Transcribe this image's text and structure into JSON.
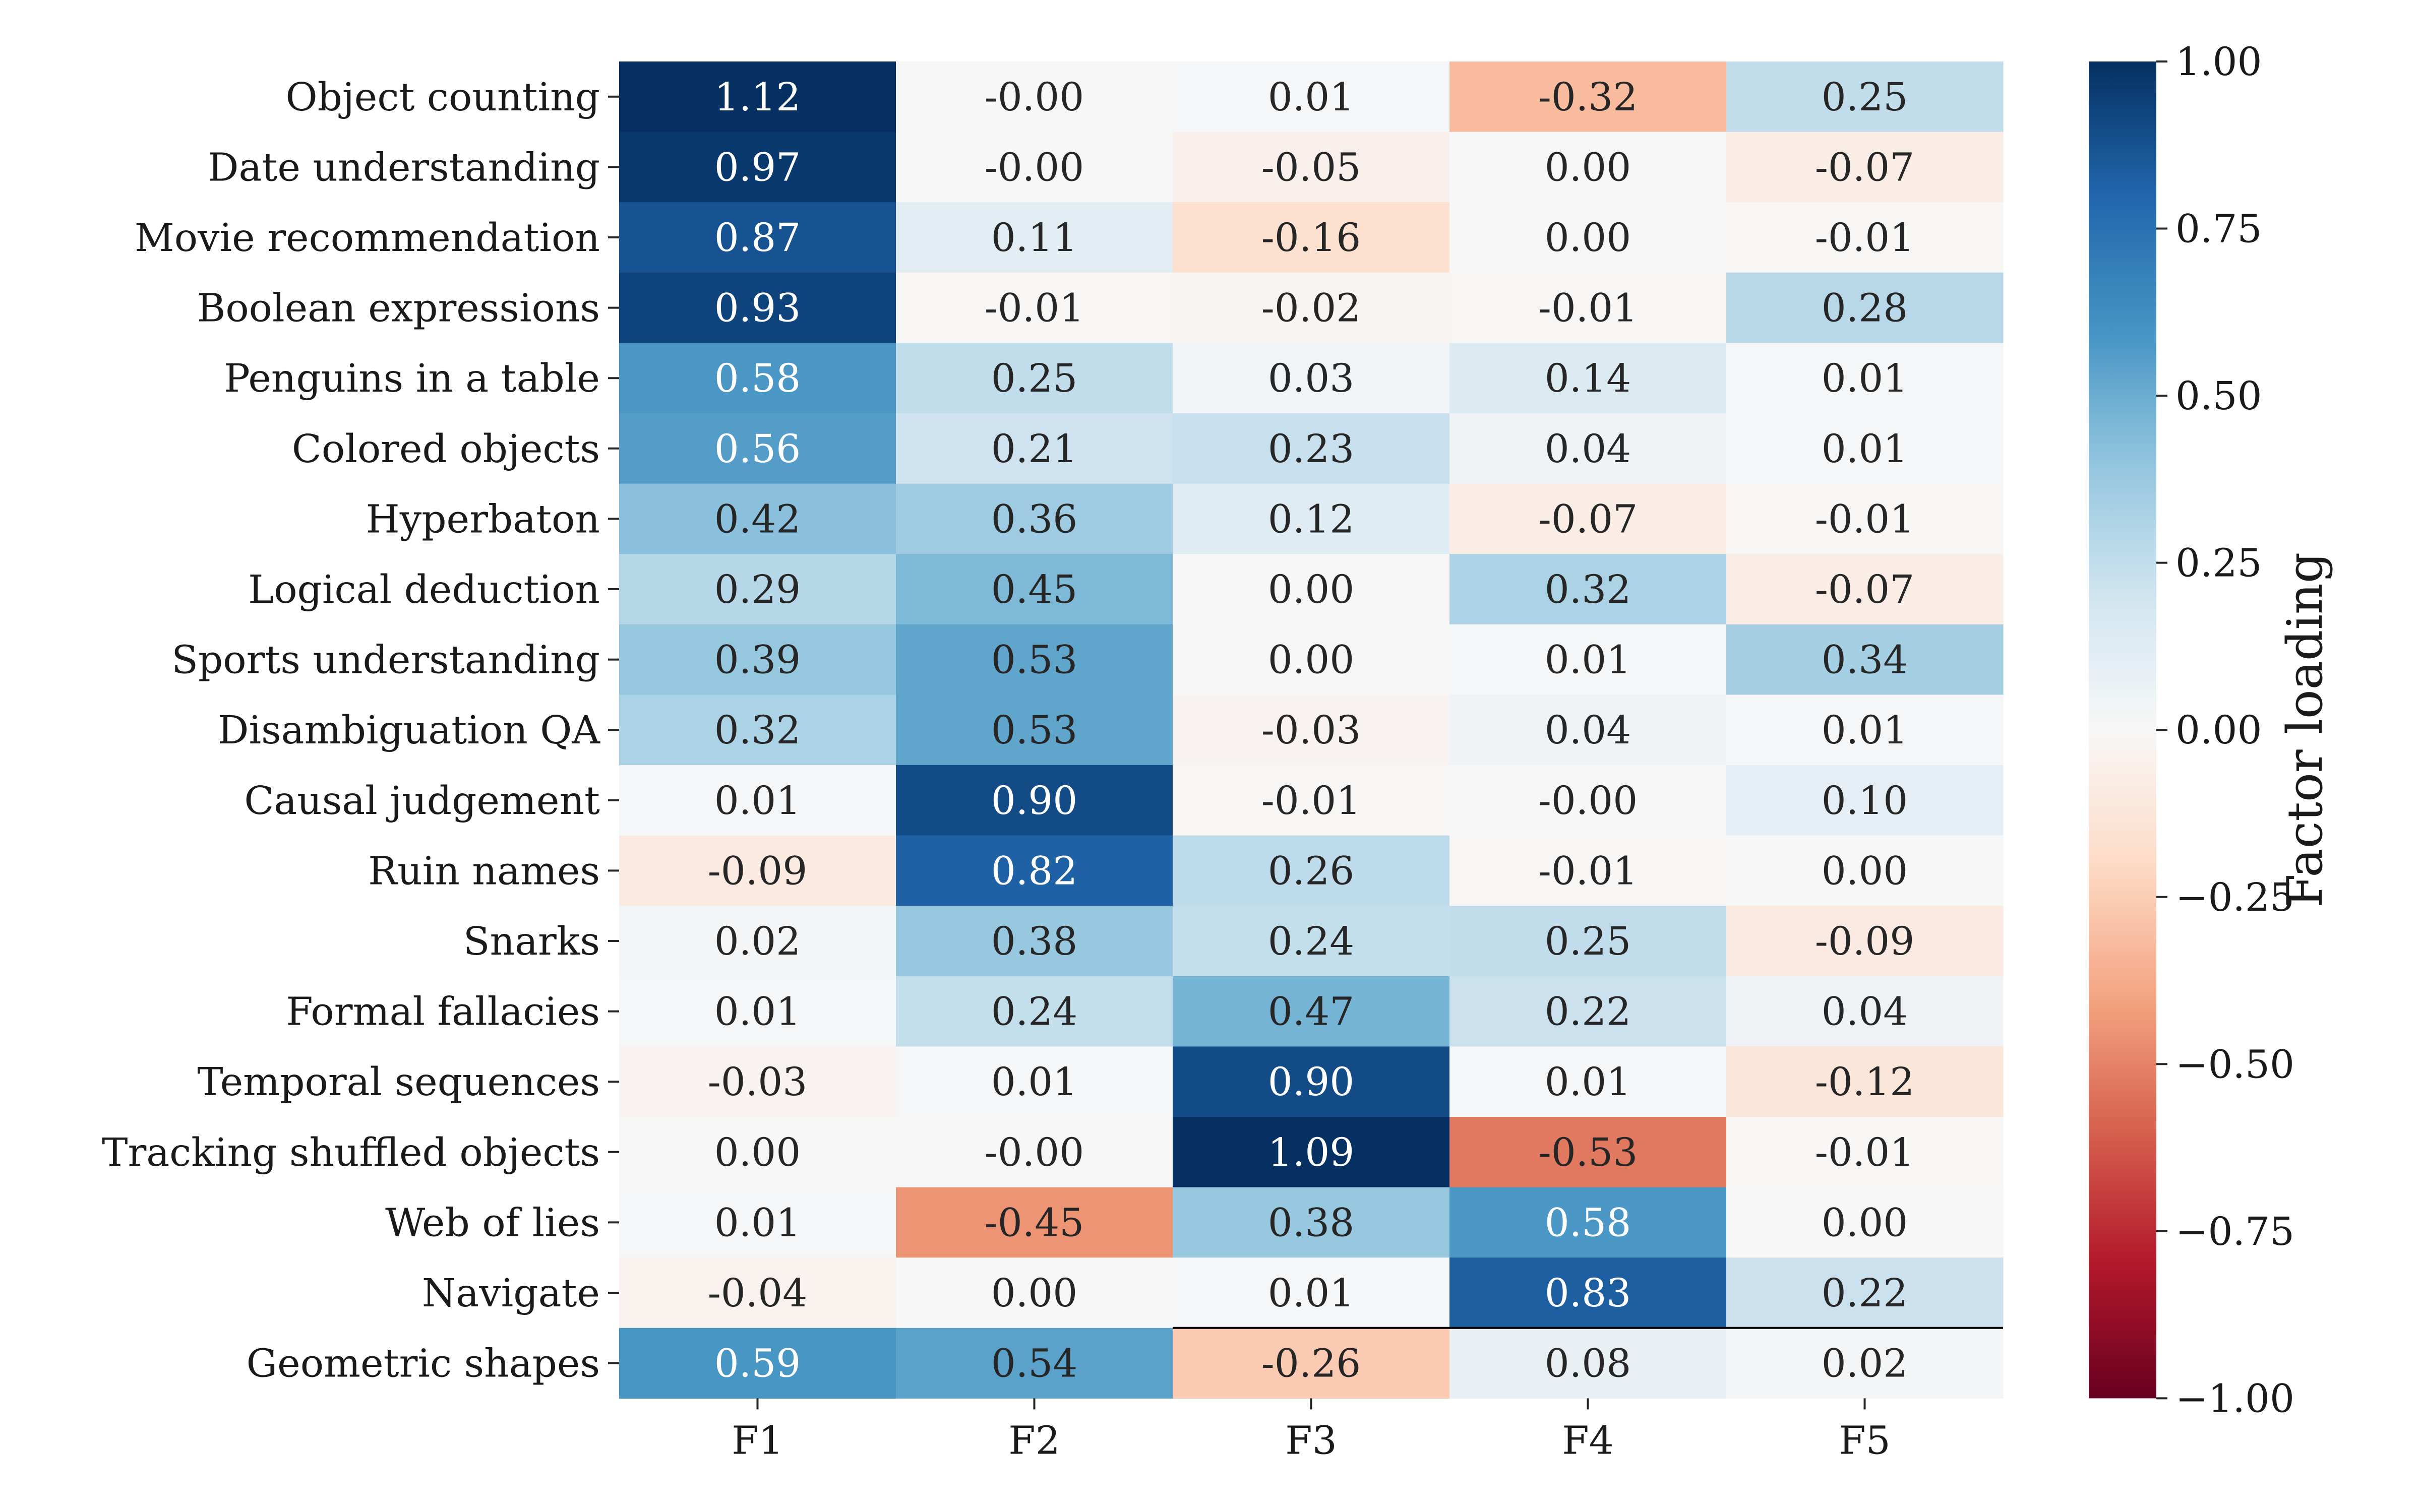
{
  "chart_data": {
    "type": "heatmap",
    "title": "",
    "xlabel": "",
    "ylabel": "",
    "columns": [
      "F1",
      "F2",
      "F3",
      "F4",
      "F5"
    ],
    "rows": [
      "Object counting",
      "Date understanding",
      "Movie recommendation",
      "Boolean expressions",
      "Penguins in a table",
      "Colored objects",
      "Hyperbaton",
      "Logical deduction",
      "Sports understanding",
      "Disambiguation QA",
      "Causal judgement",
      "Ruin names",
      "Snarks",
      "Formal fallacies",
      "Temporal sequences",
      "Tracking shuffled objects",
      "Web of lies",
      "Navigate",
      "Geometric shapes"
    ],
    "values": [
      [
        1.12,
        -0.001,
        0.01,
        -0.32,
        0.25
      ],
      [
        0.97,
        -0.001,
        -0.05,
        0.0,
        -0.07
      ],
      [
        0.87,
        0.11,
        -0.16,
        0.0,
        -0.01
      ],
      [
        0.93,
        -0.01,
        -0.02,
        -0.01,
        0.28
      ],
      [
        0.58,
        0.25,
        0.03,
        0.14,
        0.01
      ],
      [
        0.56,
        0.21,
        0.23,
        0.04,
        0.01
      ],
      [
        0.42,
        0.36,
        0.12,
        -0.07,
        -0.01
      ],
      [
        0.29,
        0.45,
        0.0,
        0.32,
        -0.07
      ],
      [
        0.39,
        0.53,
        0.0,
        0.01,
        0.34
      ],
      [
        0.32,
        0.53,
        -0.03,
        0.04,
        0.01
      ],
      [
        0.01,
        0.9,
        -0.01,
        -0.001,
        0.1
      ],
      [
        -0.09,
        0.82,
        0.26,
        -0.01,
        0.0
      ],
      [
        0.02,
        0.38,
        0.24,
        0.25,
        -0.09
      ],
      [
        0.01,
        0.24,
        0.47,
        0.22,
        0.04
      ],
      [
        -0.03,
        0.01,
        0.9,
        0.01,
        -0.12
      ],
      [
        0.0,
        -0.001,
        1.09,
        -0.53,
        -0.01
      ],
      [
        0.01,
        -0.45,
        0.38,
        0.58,
        0.0
      ],
      [
        -0.04,
        0.0,
        0.01,
        0.83,
        0.22
      ],
      [
        0.59,
        0.54,
        -0.26,
        0.08,
        0.02
      ]
    ],
    "value_labels": [
      [
        "1.12",
        "-0.00",
        "0.01",
        "-0.32",
        "0.25"
      ],
      [
        "0.97",
        "-0.00",
        "-0.05",
        "0.00",
        "-0.07"
      ],
      [
        "0.87",
        "0.11",
        "-0.16",
        "0.00",
        "-0.01"
      ],
      [
        "0.93",
        "-0.01",
        "-0.02",
        "-0.01",
        "0.28"
      ],
      [
        "0.58",
        "0.25",
        "0.03",
        "0.14",
        "0.01"
      ],
      [
        "0.56",
        "0.21",
        "0.23",
        "0.04",
        "0.01"
      ],
      [
        "0.42",
        "0.36",
        "0.12",
        "-0.07",
        "-0.01"
      ],
      [
        "0.29",
        "0.45",
        "0.00",
        "0.32",
        "-0.07"
      ],
      [
        "0.39",
        "0.53",
        "0.00",
        "0.01",
        "0.34"
      ],
      [
        "0.32",
        "0.53",
        "-0.03",
        "0.04",
        "0.01"
      ],
      [
        "0.01",
        "0.90",
        "-0.01",
        "-0.00",
        "0.10"
      ],
      [
        "-0.09",
        "0.82",
        "0.26",
        "-0.01",
        "0.00"
      ],
      [
        "0.02",
        "0.38",
        "0.24",
        "0.25",
        "-0.09"
      ],
      [
        "0.01",
        "0.24",
        "0.47",
        "0.22",
        "0.04"
      ],
      [
        "-0.03",
        "0.01",
        "0.90",
        "0.01",
        "-0.12"
      ],
      [
        "0.00",
        "-0.00",
        "1.09",
        "-0.53",
        "-0.01"
      ],
      [
        "0.01",
        "-0.45",
        "0.38",
        "0.58",
        "0.00"
      ],
      [
        "-0.04",
        "0.00",
        "0.01",
        "0.83",
        "0.22"
      ],
      [
        "0.59",
        "0.54",
        "-0.26",
        "0.08",
        "0.02"
      ]
    ],
    "colorbar": {
      "label": "Factor loading",
      "vmin": -1.0,
      "vmax": 1.0,
      "colormap": "RdBu",
      "ticks": [
        1.0,
        0.75,
        0.5,
        0.25,
        0.0,
        -0.25,
        -0.5,
        -0.75,
        -1.0
      ],
      "tick_labels": [
        "1.00",
        "0.75",
        "0.50",
        "0.25",
        "0.00",
        "−0.25",
        "−0.50",
        "−0.75",
        "−1.00"
      ]
    },
    "separator_after_row": "Navigate",
    "grid": false
  },
  "colors": {
    "dark_text": "#262626",
    "light_text": "#ffffff",
    "separator": "#000000"
  }
}
